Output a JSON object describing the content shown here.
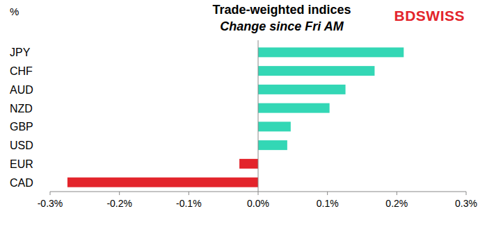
{
  "chart_data": {
    "type": "bar",
    "orientation": "horizontal",
    "title": "Trade-weighted indices",
    "subtitle": "Change since Fri AM",
    "y_label": "%",
    "logo": "BDSWISS",
    "categories": [
      "JPY",
      "CHF",
      "AUD",
      "NZD",
      "GBP",
      "USD",
      "EUR",
      "CAD"
    ],
    "values": [
      0.21,
      0.168,
      0.126,
      0.103,
      0.047,
      0.042,
      -0.027,
      -0.275
    ],
    "colors": [
      "#33d7b5",
      "#33d7b5",
      "#33d7b5",
      "#33d7b5",
      "#33d7b5",
      "#33d7b5",
      "#e3242b",
      "#e3242b"
    ],
    "xlim": [
      -0.3,
      0.3
    ],
    "xticks": [
      {
        "value": -0.3,
        "label": "-0.3%"
      },
      {
        "value": -0.2,
        "label": "-0.2%"
      },
      {
        "value": -0.1,
        "label": "-0.1%"
      },
      {
        "value": 0,
        "label": "0.0%"
      },
      {
        "value": 0.1,
        "label": "0.1%"
      },
      {
        "value": 0.2,
        "label": "0.2%"
      },
      {
        "value": 0.3,
        "label": "0.3%"
      }
    ],
    "grid": false
  }
}
